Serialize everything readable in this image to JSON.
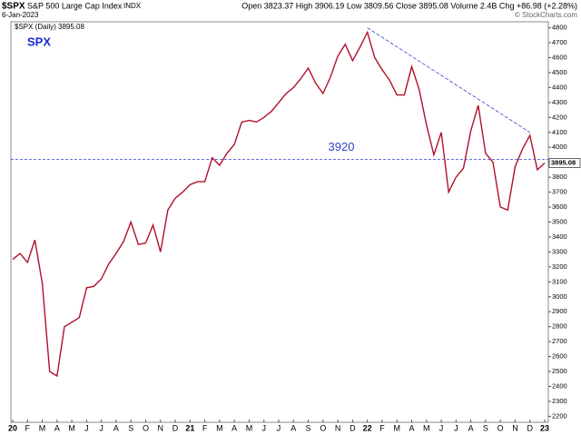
{
  "header": {
    "symbol": "$SPX",
    "name": "S&P 500 Large Cap Index",
    "exchange": "INDX",
    "date": "6-Jan-2023",
    "quote": "Open 3823.37  High 3906.19  Low 3809.56  Close 3895.08  Volume 2.4B  Chg +86.98 (+2.28%)",
    "credit": "© StockCharts.com"
  },
  "chart_data": {
    "type": "line",
    "legend": "$SPX (Daily) 3895.08",
    "annotation": "SPX",
    "categories": [
      "20",
      null,
      "F",
      null,
      "M",
      null,
      "A",
      null,
      "M",
      null,
      "J",
      null,
      "J",
      null,
      "A",
      null,
      "S",
      null,
      "O",
      null,
      "N",
      null,
      "D",
      null,
      "21",
      null,
      "F",
      null,
      "M",
      null,
      "A",
      null,
      "M",
      null,
      "J",
      null,
      "J",
      null,
      "A",
      null,
      "S",
      null,
      "O",
      null,
      "N",
      null,
      "D",
      null,
      "22",
      null,
      "F",
      null,
      "M",
      null,
      "A",
      null,
      "M",
      null,
      "J",
      null,
      "J",
      null,
      "A",
      null,
      "S",
      null,
      "O",
      null,
      "N",
      null,
      "D",
      null,
      "23"
    ],
    "series": [
      {
        "name": "$SPX",
        "color": "#b0102a",
        "values": [
          3250,
          3290,
          3230,
          3380,
          3090,
          2500,
          2470,
          2800,
          2830,
          2860,
          3060,
          3070,
          3120,
          3220,
          3290,
          3370,
          3500,
          3350,
          3360,
          3480,
          3300,
          3580,
          3660,
          3700,
          3750,
          3770,
          3770,
          3930,
          3880,
          3960,
          4020,
          4170,
          4180,
          4170,
          4200,
          4240,
          4300,
          4360,
          4400,
          4460,
          4530,
          4430,
          4360,
          4470,
          4610,
          4690,
          4580,
          4670,
          4770,
          4600,
          4520,
          4450,
          4350,
          4350,
          4540,
          4390,
          4150,
          3950,
          4100,
          3700,
          3800,
          3860,
          4110,
          4280,
          3960,
          3900,
          3600,
          3580,
          3870,
          3990,
          4080,
          3850,
          3895.08
        ]
      }
    ],
    "reference_line": {
      "value": 3920,
      "color": "#3344cc"
    },
    "trendline": {
      "x": [
        48,
        70
      ],
      "values": [
        4800,
        4100
      ],
      "color": "#3344cc"
    },
    "ylim": [
      2160,
      4840
    ],
    "yticks": [
      2200,
      2300,
      2400,
      2500,
      2600,
      2700,
      2800,
      2900,
      3000,
      3100,
      3200,
      3300,
      3400,
      3500,
      3600,
      3700,
      3800,
      3900,
      4000,
      4100,
      4200,
      4300,
      4400,
      4500,
      4600,
      4700,
      4800
    ],
    "grid": false
  }
}
